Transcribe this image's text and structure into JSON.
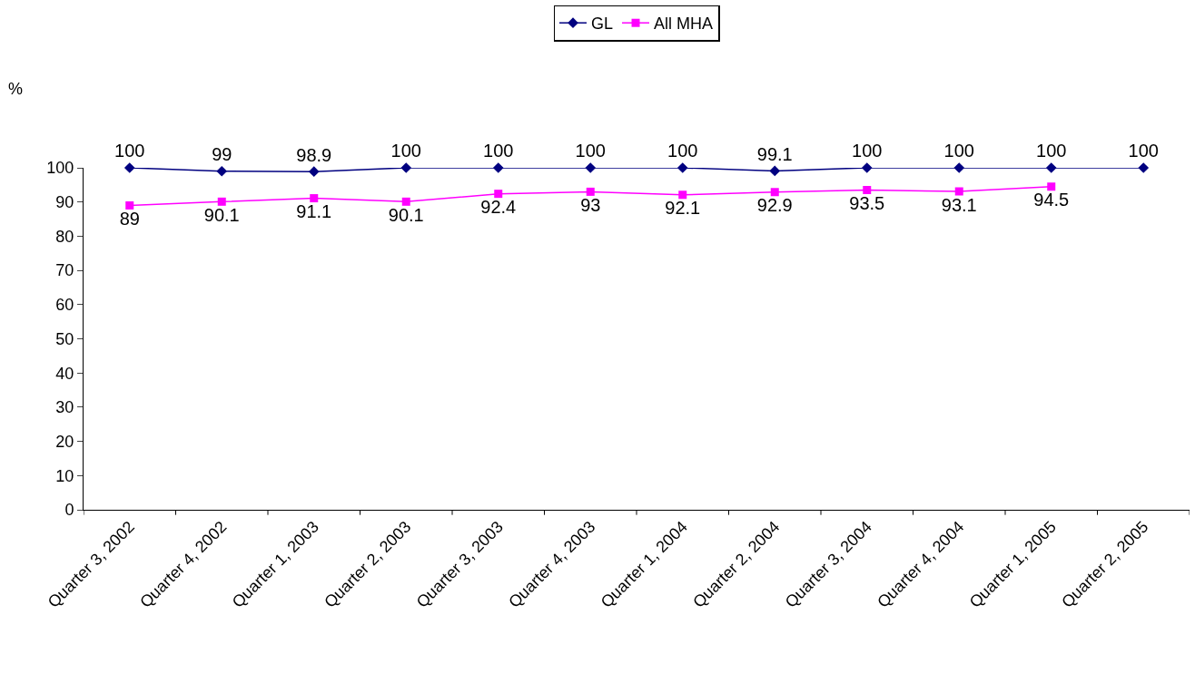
{
  "chart_data": {
    "type": "line",
    "ylabel": "%",
    "categories": [
      "Quarter 3, 2002",
      "Quarter 4, 2002",
      "Quarter 1, 2003",
      "Quarter 2, 2003",
      "Quarter 3, 2003",
      "Quarter 4, 2003",
      "Quarter 1, 2004",
      "Quarter 2, 2004",
      "Quarter 3, 2004",
      "Quarter 4, 2004",
      "Quarter 1, 2005",
      "Quarter 2, 2005"
    ],
    "series": [
      {
        "name": "GL",
        "color": "#000080",
        "marker": "diamond",
        "values": [
          100,
          99,
          98.9,
          100,
          100,
          100,
          100,
          99.1,
          100,
          100,
          100,
          100
        ]
      },
      {
        "name": "All MHA",
        "color": "#ff00ff",
        "marker": "square",
        "values": [
          89,
          90.1,
          91.1,
          90.1,
          92.4,
          93,
          92.1,
          92.9,
          93.5,
          93.1,
          94.5,
          null
        ]
      }
    ],
    "ylim": [
      0,
      100
    ],
    "yticks": [
      0,
      10,
      20,
      30,
      40,
      50,
      60,
      70,
      80,
      90,
      100
    ],
    "data_labels": true,
    "legend": "top"
  }
}
